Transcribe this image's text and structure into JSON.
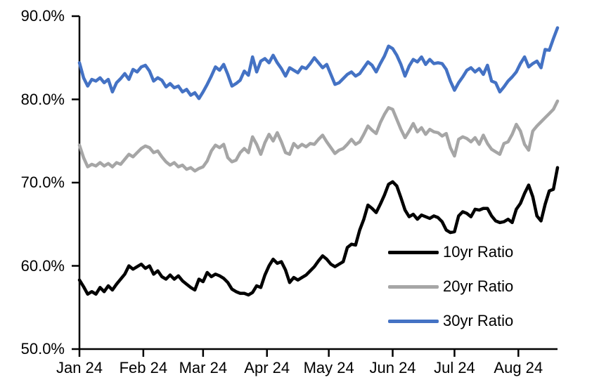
{
  "chart_data": {
    "type": "line",
    "title": "",
    "xlabel": "",
    "ylabel": "",
    "ylim": [
      50,
      90
    ],
    "y_tick_labels": [
      "90.0%",
      "80.0%",
      "70.0%",
      "60.0%",
      "50.0%"
    ],
    "y_tick_values": [
      90,
      80,
      70,
      60,
      50
    ],
    "x_tick_labels": [
      "Jan 24",
      "Feb 24",
      "Mar 24",
      "Apr 24",
      "May 24",
      "Jun 24",
      "Jul 24",
      "Aug 24"
    ],
    "x_tick_days": [
      0,
      31,
      60,
      91,
      121,
      152,
      182,
      213
    ],
    "x_total_days": 232,
    "x_step_days": 2,
    "x_unit": "Daily, Jan 2024 - Aug 2024",
    "grid": false,
    "legend_position": "inside-lower-right",
    "axis_color": "#000000",
    "series": [
      {
        "name": "10yr Ratio",
        "color": "#000000",
        "values": [
          58.3,
          57.5,
          56.6,
          56.9,
          56.6,
          57.4,
          56.9,
          57.6,
          57.1,
          57.8,
          58.4,
          59.0,
          60.0,
          59.6,
          59.9,
          60.2,
          59.7,
          60.0,
          59.0,
          59.4,
          58.7,
          58.4,
          58.9,
          58.4,
          58.8,
          58.2,
          57.8,
          57.4,
          57.1,
          58.4,
          58.1,
          59.2,
          58.7,
          59.0,
          58.8,
          58.5,
          58.0,
          57.2,
          56.9,
          56.7,
          56.7,
          56.5,
          56.8,
          57.6,
          57.4,
          58.9,
          60.0,
          60.8,
          60.3,
          60.5,
          59.5,
          58.0,
          58.6,
          58.3,
          58.6,
          58.9,
          59.4,
          59.9,
          60.6,
          61.2,
          60.8,
          60.2,
          59.9,
          60.2,
          60.5,
          62.2,
          62.6,
          62.5,
          64.3,
          65.6,
          67.3,
          66.9,
          66.4,
          67.4,
          68.5,
          69.8,
          70.1,
          69.6,
          68.2,
          66.7,
          65.9,
          66.2,
          65.6,
          66.1,
          65.9,
          65.7,
          66.0,
          65.8,
          65.3,
          64.3,
          64.0,
          64.1,
          66.0,
          66.5,
          66.3,
          65.9,
          66.8,
          66.7,
          66.9,
          66.9,
          66.0,
          65.4,
          65.2,
          65.3,
          65.6,
          65.2,
          66.8,
          67.5,
          68.7,
          69.7,
          68.3,
          66.0,
          65.4,
          67.4,
          69.0,
          69.2,
          71.8
        ]
      },
      {
        "name": "20yr Ratio",
        "color": "#A6A6A6",
        "values": [
          74.5,
          73.0,
          71.9,
          72.2,
          72.0,
          72.4,
          72.0,
          72.3,
          71.9,
          72.4,
          72.2,
          72.8,
          73.4,
          73.1,
          73.6,
          74.1,
          74.4,
          74.2,
          73.6,
          73.8,
          73.1,
          72.5,
          72.1,
          72.4,
          71.9,
          72.1,
          71.6,
          71.8,
          71.4,
          71.7,
          71.9,
          72.6,
          73.8,
          74.5,
          74.2,
          74.6,
          73.0,
          72.5,
          72.7,
          73.6,
          74.1,
          73.6,
          75.5,
          74.6,
          73.4,
          74.8,
          75.8,
          75.0,
          76.0,
          74.9,
          73.6,
          73.4,
          74.7,
          74.2,
          74.6,
          74.3,
          74.7,
          74.6,
          75.2,
          75.7,
          74.9,
          74.2,
          73.5,
          73.9,
          74.1,
          74.6,
          75.2,
          74.6,
          74.9,
          75.8,
          76.8,
          76.3,
          75.9,
          77.2,
          78.2,
          79.0,
          78.8,
          77.6,
          76.4,
          75.4,
          76.2,
          77.1,
          76.1,
          76.6,
          75.8,
          76.4,
          76.1,
          76.0,
          75.6,
          75.9,
          74.2,
          73.2,
          75.2,
          75.5,
          75.3,
          74.9,
          75.4,
          74.6,
          75.7,
          74.7,
          74.0,
          73.7,
          73.4,
          74.7,
          74.9,
          75.8,
          77.0,
          76.2,
          74.6,
          73.9,
          76.2,
          76.8,
          77.3,
          77.8,
          78.3,
          78.8,
          79.8
        ]
      },
      {
        "name": "30yr Ratio",
        "color": "#4472C4",
        "values": [
          84.4,
          82.6,
          81.6,
          82.4,
          82.2,
          82.6,
          82.0,
          82.4,
          80.9,
          82.0,
          82.5,
          83.1,
          82.4,
          83.6,
          83.3,
          83.9,
          84.1,
          83.4,
          82.2,
          82.6,
          82.3,
          81.5,
          81.9,
          81.4,
          81.6,
          80.9,
          81.2,
          80.5,
          80.8,
          80.1,
          80.9,
          81.8,
          82.8,
          83.9,
          83.5,
          84.2,
          83.0,
          81.6,
          81.9,
          82.3,
          83.4,
          82.9,
          85.1,
          83.3,
          84.6,
          84.9,
          84.4,
          85.3,
          84.4,
          83.7,
          82.8,
          83.8,
          83.5,
          83.2,
          83.9,
          83.7,
          84.3,
          85.0,
          84.4,
          83.8,
          84.2,
          83.0,
          81.8,
          82.0,
          82.5,
          83.0,
          83.3,
          82.8,
          83.1,
          83.8,
          84.5,
          84.1,
          83.3,
          84.3,
          85.2,
          86.4,
          86.1,
          85.3,
          84.2,
          82.8,
          84.0,
          84.8,
          84.5,
          85.1,
          84.2,
          84.8,
          84.3,
          84.4,
          84.3,
          83.6,
          82.2,
          81.1,
          82.0,
          82.7,
          83.5,
          83.8,
          83.3,
          83.7,
          83.0,
          84.1,
          82.2,
          82.0,
          80.9,
          81.5,
          82.2,
          82.7,
          83.3,
          84.3,
          85.1,
          83.9,
          84.3,
          84.6,
          83.8,
          86.0,
          85.9,
          87.3,
          88.6
        ]
      }
    ]
  }
}
